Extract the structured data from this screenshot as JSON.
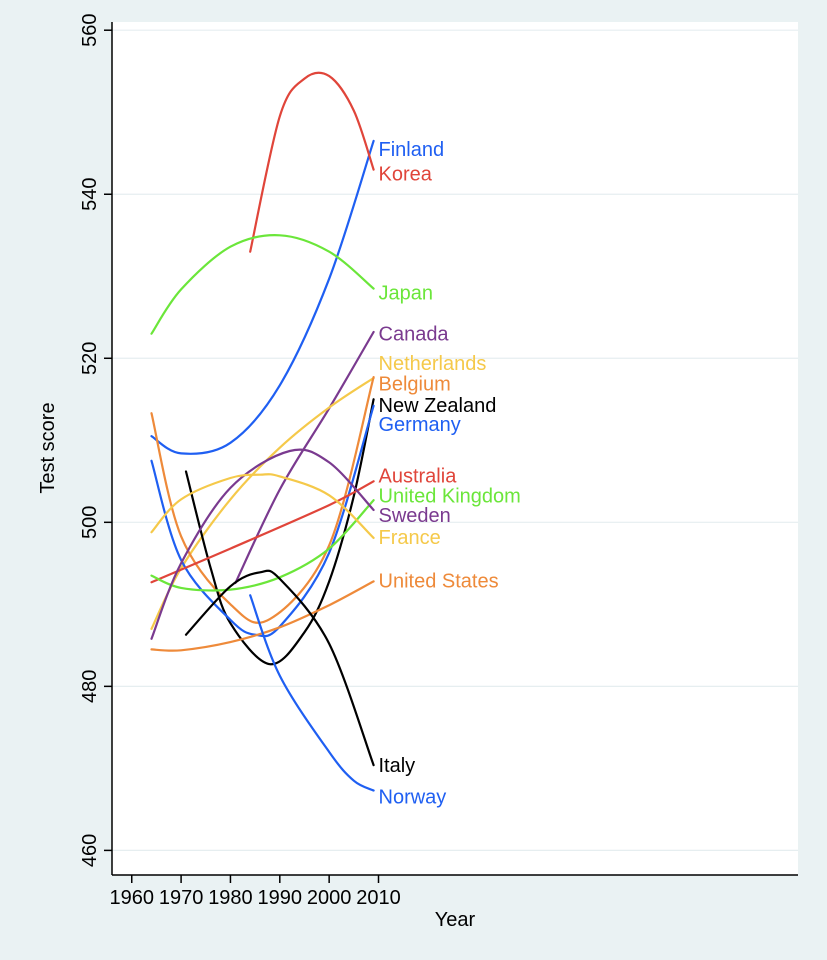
{
  "chart_data": {
    "type": "line",
    "title": "",
    "xlabel": "Year",
    "ylabel": "Test score",
    "xlim": [
      1956,
      2095
    ],
    "ylim": [
      457,
      561
    ],
    "x_ticks": [
      1960,
      1970,
      1980,
      1990,
      2000,
      2010
    ],
    "y_ticks": [
      460,
      480,
      500,
      520,
      540,
      560
    ],
    "grid": true,
    "legend": "labels at line ends (right)",
    "series": [
      {
        "name": "Finland",
        "color": "#1f5ff2",
        "x": [
          1964,
          1970,
          1980,
          1990,
          2000,
          2009
        ],
        "y": [
          510.5,
          508.4,
          509.7,
          516.7,
          529.7,
          546.5
        ]
      },
      {
        "name": "Korea",
        "color": "#e0453a",
        "x": [
          1984,
          1990,
          1995,
          2000,
          2005,
          2009
        ],
        "y": [
          533,
          549.5,
          554.1,
          554.4,
          550.2,
          543
        ]
      },
      {
        "name": "Japan",
        "color": "#6be63a",
        "x": [
          1964,
          1970,
          1980,
          1990,
          2000,
          2009
        ],
        "y": [
          523,
          528.4,
          533.6,
          535,
          533,
          528.5
        ]
      },
      {
        "name": "Canada",
        "color": "#7a3a8f",
        "x": [
          1981,
          1990,
          2000,
          2009
        ],
        "y": [
          492.6,
          504,
          513.9,
          523.2
        ]
      },
      {
        "name": "Netherlands",
        "color": "#f5c94a",
        "x": [
          1964,
          1970,
          1980,
          1990,
          2000,
          2009
        ],
        "y": [
          487,
          494.4,
          502.8,
          509.1,
          514,
          517.6
        ]
      },
      {
        "name": "Belgium",
        "color": "#ee8a3a",
        "x": [
          1964,
          1970,
          1980,
          1988,
          2000,
          2009
        ],
        "y": [
          513.3,
          498.3,
          490,
          488.2,
          497.2,
          517.7
        ]
      },
      {
        "name": "New Zealand",
        "color": "#000000",
        "x": [
          1971,
          1976,
          1980,
          1988,
          1995,
          2000,
          2005,
          2009
        ],
        "y": [
          506.2,
          494.4,
          487.7,
          482.7,
          486.6,
          492.8,
          503.2,
          515
        ]
      },
      {
        "name": "Germany",
        "color": "#1f5ff2",
        "x": [
          1964,
          1970,
          1980,
          1985,
          1990,
          2000,
          2009
        ],
        "y": [
          507.5,
          495.4,
          488.1,
          486.3,
          487.3,
          496.3,
          514.2
        ]
      },
      {
        "name": "Australia",
        "color": "#e0453a",
        "x": [
          1964,
          1980,
          2000,
          2009
        ],
        "y": [
          492.7,
          496.8,
          502.1,
          505
        ]
      },
      {
        "name": "United Kingdom",
        "color": "#6be63a",
        "x": [
          1964,
          1970,
          1980,
          1990,
          2000,
          2009
        ],
        "y": [
          493.5,
          492,
          491.8,
          493.3,
          496.8,
          502.7
        ]
      },
      {
        "name": "Sweden",
        "color": "#7a3a8f",
        "x": [
          1964,
          1970,
          1980,
          1992,
          2000,
          2009
        ],
        "y": [
          485.8,
          495,
          504.2,
          508.7,
          507.3,
          501.5
        ]
      },
      {
        "name": "France",
        "color": "#f5c94a",
        "x": [
          1964,
          1970,
          1980,
          1986,
          1990,
          2000,
          2009
        ],
        "y": [
          498.8,
          502.8,
          505.4,
          505.8,
          505.6,
          503.3,
          498.1
        ]
      },
      {
        "name": "United States",
        "color": "#ee8a3a",
        "x": [
          1964,
          1970,
          1980,
          1990,
          2000,
          2009
        ],
        "y": [
          484.5,
          484.4,
          485.4,
          487.2,
          489.9,
          492.8
        ]
      },
      {
        "name": "Italy",
        "color": "#000000",
        "x": [
          1971,
          1980,
          1986,
          1990,
          2000,
          2009
        ],
        "y": [
          486.3,
          492.2,
          493.9,
          493.1,
          485.2,
          470.4
        ]
      },
      {
        "name": "Norway",
        "color": "#1f5ff2",
        "x": [
          1984,
          1990,
          2000,
          2005,
          2009
        ],
        "y": [
          491.1,
          481.3,
          472,
          468.5,
          467.3
        ]
      }
    ],
    "labels": [
      {
        "text": "Finland",
        "color": "#1f5ff2",
        "x": 2010,
        "y": 545.5
      },
      {
        "text": "Korea",
        "color": "#e0453a",
        "x": 2010,
        "y": 542.5
      },
      {
        "text": "Japan",
        "color": "#6be63a",
        "x": 2010,
        "y": 528
      },
      {
        "text": "Canada",
        "color": "#7a3a8f",
        "x": 2010,
        "y": 523
      },
      {
        "text": "Netherlands",
        "color": "#f5c94a",
        "x": 2010,
        "y": 519.4
      },
      {
        "text": "Belgium",
        "color": "#ee8a3a",
        "x": 2010,
        "y": 516.9
      },
      {
        "text": "New Zealand",
        "color": "#000000",
        "x": 2010,
        "y": 514.3
      },
      {
        "text": "Germany",
        "color": "#1f5ff2",
        "x": 2010,
        "y": 512
      },
      {
        "text": "Australia",
        "color": "#e0453a",
        "x": 2010,
        "y": 505.7
      },
      {
        "text": "United Kingdom",
        "color": "#6be63a",
        "x": 2010,
        "y": 503.3
      },
      {
        "text": "Sweden",
        "color": "#7a3a8f",
        "x": 2010,
        "y": 500.9
      },
      {
        "text": "France",
        "color": "#f5c94a",
        "x": 2010,
        "y": 498.2
      },
      {
        "text": "United States",
        "color": "#ee8a3a",
        "x": 2010,
        "y": 492.9
      },
      {
        "text": "Italy",
        "color": "#000000",
        "x": 2010,
        "y": 470.4
      },
      {
        "text": "Norway",
        "color": "#1f5ff2",
        "x": 2010,
        "y": 466.6
      }
    ]
  }
}
